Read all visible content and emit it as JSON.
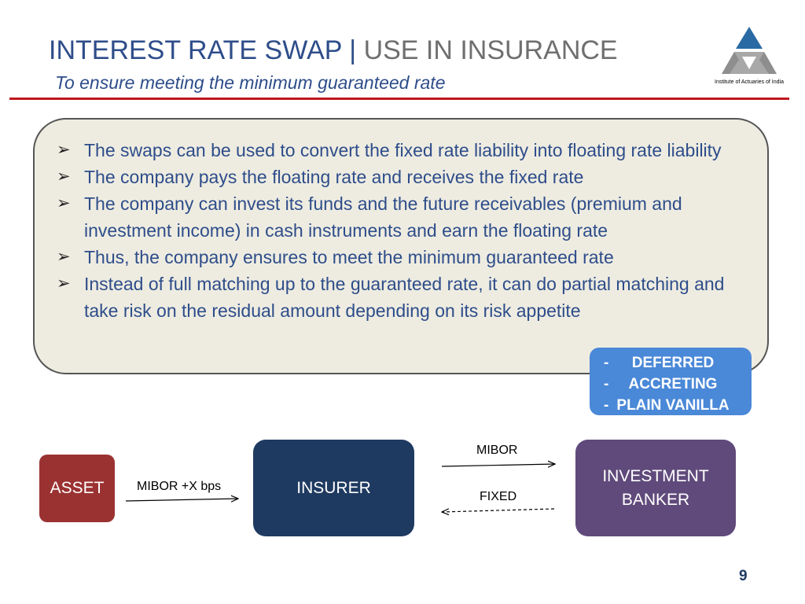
{
  "header": {
    "title_main": "INTEREST RATE SWAP",
    "title_sep": "|",
    "title_sub": "USE IN INSURANCE",
    "subtitle": "To ensure meeting the minimum guaranteed rate"
  },
  "logo": {
    "caption": "Institute of Actuaries of India"
  },
  "bullets": [
    "The swaps can be used to convert the fixed rate liability into floating rate liability",
    "The company pays the floating rate and receives the fixed rate",
    "The company can invest its funds and the future receivables (premium and investment income) in cash instruments and earn the floating rate",
    "Thus, the company ensures to meet the minimum guaranteed rate",
    "Instead of full matching up to the guaranteed rate, it can do partial matching and take risk on the residual amount depending on its risk appetite"
  ],
  "swap_types": [
    "DEFERRED",
    "ACCRETING",
    "PLAIN VANILLA"
  ],
  "diagram": {
    "asset": "ASSET",
    "insurer": "INSURER",
    "banker_line1": "INVESTMENT",
    "banker_line2": "BANKER",
    "asset_to_insurer": "MIBOR +X bps",
    "insurer_to_banker": "MIBOR",
    "banker_to_insurer": "FIXED"
  },
  "page_number": "9",
  "colors": {
    "title_blue": "#2e4d8a",
    "accent_red": "#c0161e",
    "asset": "#9b3232",
    "insurer": "#1f3a61",
    "banker": "#604a7b",
    "types_box": "#4a88d8"
  }
}
